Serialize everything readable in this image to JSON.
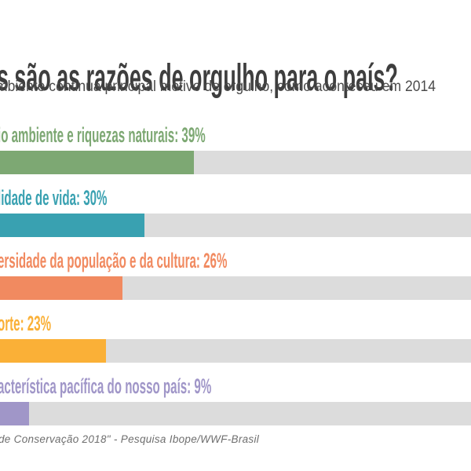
{
  "page": {
    "background": "#FFFFFF"
  },
  "header": {
    "title": "s são as razões de orgulho para o país?",
    "title_color": "#3E3E3E",
    "subtitle": "mbiente continua principal motivo de orgulho, como aconteceu em 2014",
    "subtitle_color": "#4B4B4B"
  },
  "footer": {
    "source": "de Conservação 2018\" - Pesquisa Ibope/WWF-Brasil",
    "color": "#6E6E6E"
  },
  "chart_data": {
    "type": "bar",
    "orientation": "horizontal",
    "title": "s são as razões de orgulho para o país?",
    "subtitle": "mbiente continua principal motivo de orgulho, como aconteceu em 2014",
    "value_unit": "%",
    "grid": false,
    "legend": "none",
    "track_color": "#DCDCDC",
    "categories": [
      "io ambiente e riquezas naturais",
      "lidade de vida",
      "ersidade da população e da cultura",
      "orte",
      "acterística pacífica do nosso país"
    ],
    "values": [
      39,
      30,
      26,
      23,
      9
    ],
    "rows": [
      {
        "label": "io ambiente e riquezas naturais",
        "display": "io ambiente e riquezas naturais: 39%",
        "value": 39,
        "color": "#7DA873"
      },
      {
        "label": "lidade de vida",
        "display": "lidade de vida: 30%",
        "value": 30,
        "color": "#39A1B1"
      },
      {
        "label": "ersidade da população e da cultura",
        "display": "ersidade da população e da cultura: 26%",
        "value": 26,
        "color": "#F18A60"
      },
      {
        "label": "orte",
        "display": "orte: 23%",
        "value": 23,
        "color": "#FAB037"
      },
      {
        "label": "acterística pacífica do nosso país",
        "display": "acterística pacífica do nosso país: 9%",
        "value": 9,
        "color": "#A096C8"
      }
    ]
  }
}
